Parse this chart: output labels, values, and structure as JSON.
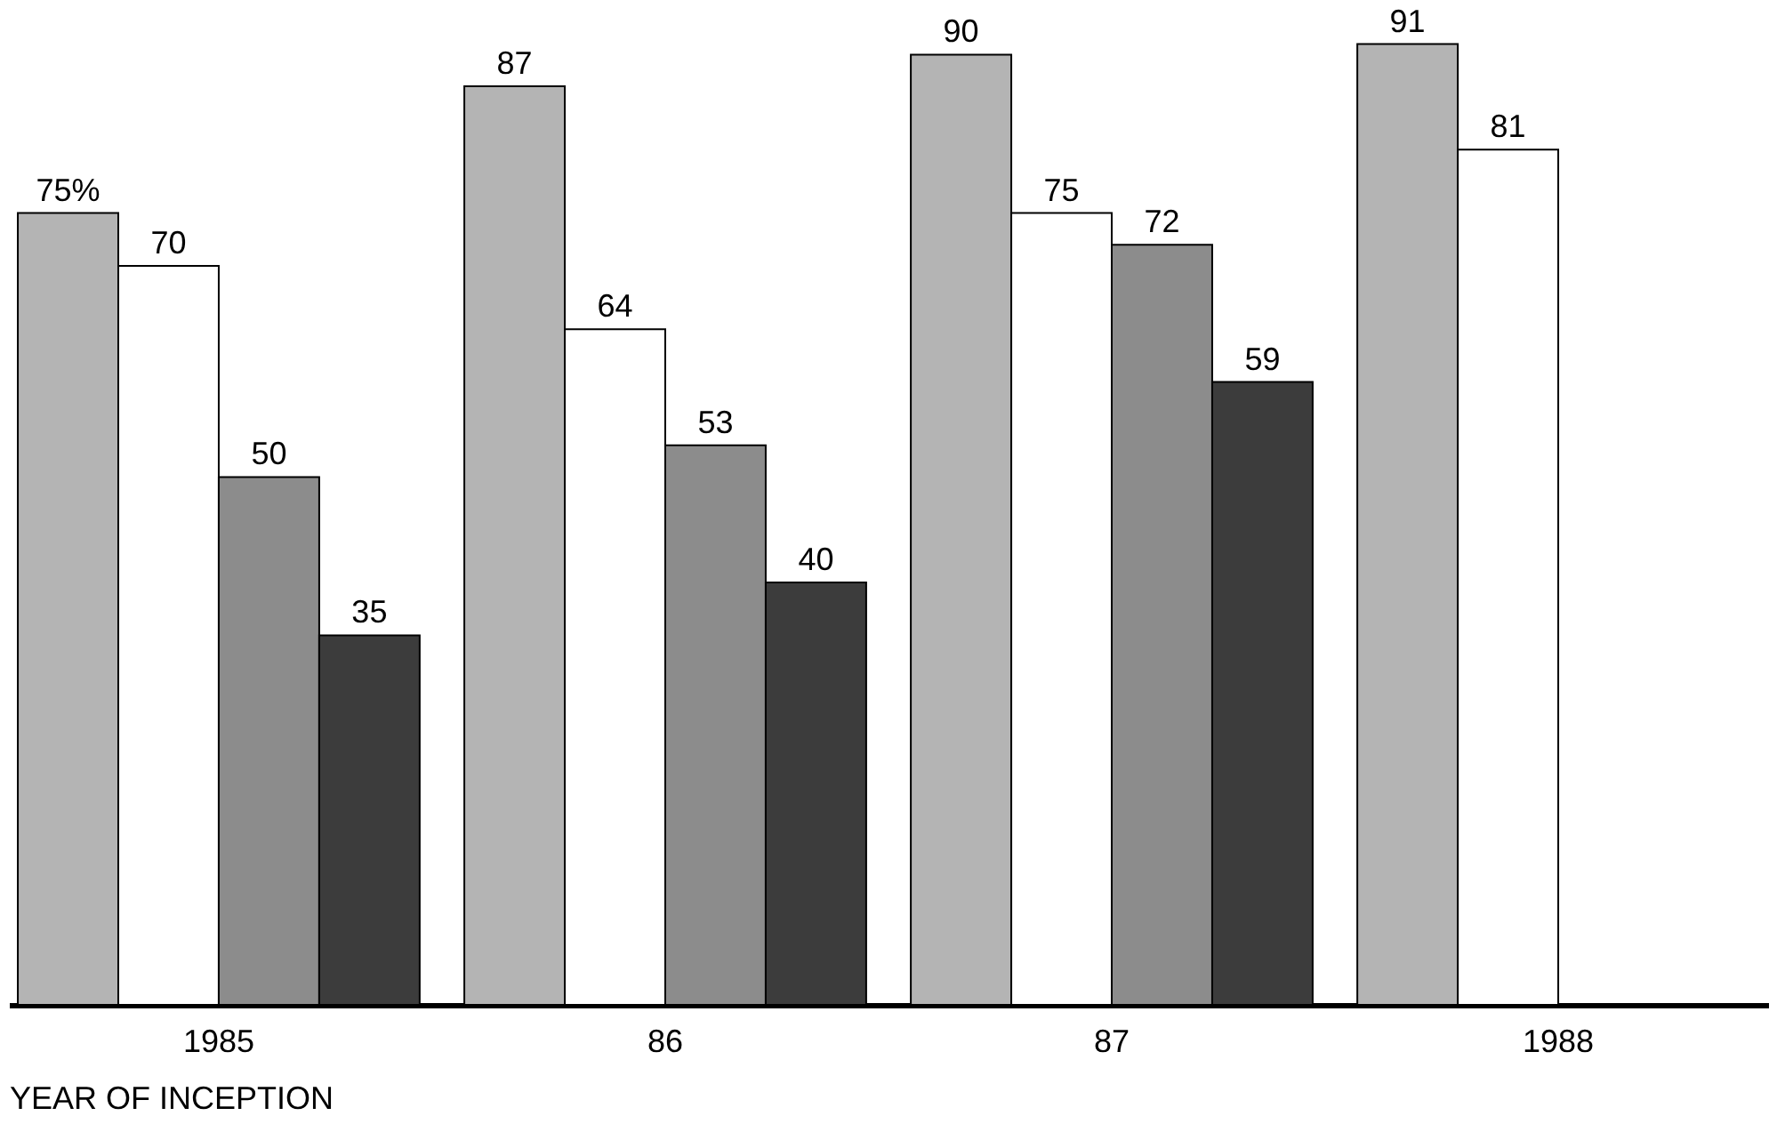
{
  "chart_data": {
    "type": "bar",
    "xlabel": "YEAR OF INCEPTION",
    "categories": [
      "1985",
      "86",
      "87",
      "1988"
    ],
    "legend": false,
    "grid": false,
    "series": [
      {
        "color": "#b4b4b4",
        "values": [
          75,
          87,
          90,
          91
        ],
        "value_labels": [
          "75%",
          "87",
          "90",
          "91"
        ]
      },
      {
        "color": "#ffffff",
        "values": [
          70,
          64,
          75,
          81
        ],
        "value_labels": [
          "70",
          "64",
          "75",
          "81"
        ]
      },
      {
        "color": "#8c8c8c",
        "values": [
          50,
          53,
          72,
          null
        ],
        "value_labels": [
          "50",
          "53",
          "72",
          null
        ]
      },
      {
        "color": "#3c3c3c",
        "values": [
          35,
          40,
          59,
          null
        ],
        "value_labels": [
          "35",
          "40",
          "59",
          null
        ]
      }
    ]
  }
}
